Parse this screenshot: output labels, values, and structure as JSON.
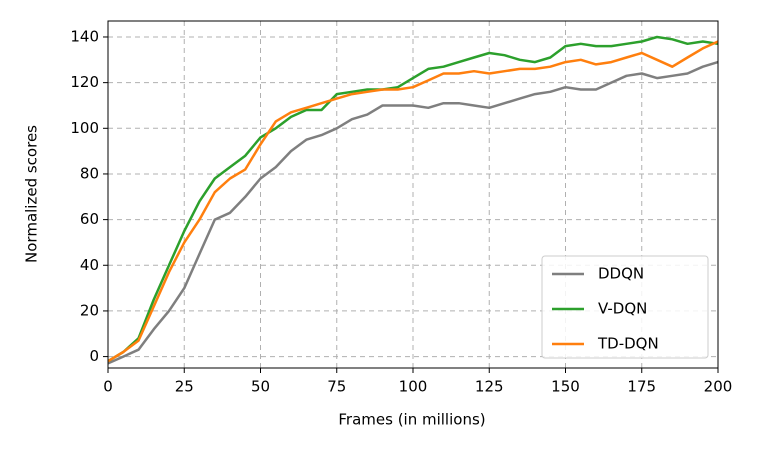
{
  "chart_data": {
    "type": "line",
    "xlabel": "Frames (in millions)",
    "ylabel": "Normalized scores",
    "x": [
      0,
      5,
      10,
      15,
      20,
      25,
      30,
      35,
      40,
      45,
      50,
      55,
      60,
      65,
      70,
      75,
      80,
      85,
      90,
      95,
      100,
      105,
      110,
      115,
      120,
      125,
      130,
      135,
      140,
      145,
      150,
      155,
      160,
      165,
      170,
      175,
      180,
      185,
      190,
      195,
      200
    ],
    "series": [
      {
        "name": "DDQN",
        "color": "#7f7f7f",
        "values": [
          -3,
          0,
          3,
          12,
          20,
          30,
          45,
          60,
          63,
          70,
          78,
          83,
          90,
          95,
          97,
          100,
          104,
          106,
          110,
          110,
          110,
          109,
          111,
          111,
          110,
          109,
          111,
          113,
          115,
          116,
          118,
          117,
          117,
          120,
          123,
          124,
          122,
          123,
          124,
          127,
          129
        ]
      },
      {
        "name": "V-DQN",
        "color": "#2ca02c",
        "values": [
          -2,
          2,
          8,
          25,
          40,
          55,
          68,
          78,
          83,
          88,
          96,
          100,
          105,
          108,
          108,
          115,
          116,
          117,
          117,
          118,
          122,
          126,
          127,
          129,
          131,
          133,
          132,
          130,
          129,
          131,
          136,
          137,
          136,
          136,
          137,
          138,
          140,
          139,
          137,
          138,
          137
        ]
      },
      {
        "name": "TD-DQN",
        "color": "#ff7f0e",
        "values": [
          -2,
          2,
          7,
          22,
          37,
          50,
          60,
          72,
          78,
          82,
          93,
          103,
          107,
          109,
          111,
          113,
          115,
          116,
          117,
          117,
          118,
          121,
          124,
          124,
          125,
          124,
          125,
          126,
          126,
          127,
          129,
          130,
          128,
          129,
          131,
          133,
          130,
          127,
          131,
          135,
          138
        ]
      }
    ],
    "xlim": [
      0,
      200
    ],
    "ylim": [
      -5,
      147
    ],
    "xticks": [
      0,
      25,
      50,
      75,
      100,
      125,
      150,
      175,
      200
    ],
    "yticks": [
      0,
      20,
      40,
      60,
      80,
      100,
      120,
      140
    ],
    "grid": true,
    "legend": "lower right"
  }
}
